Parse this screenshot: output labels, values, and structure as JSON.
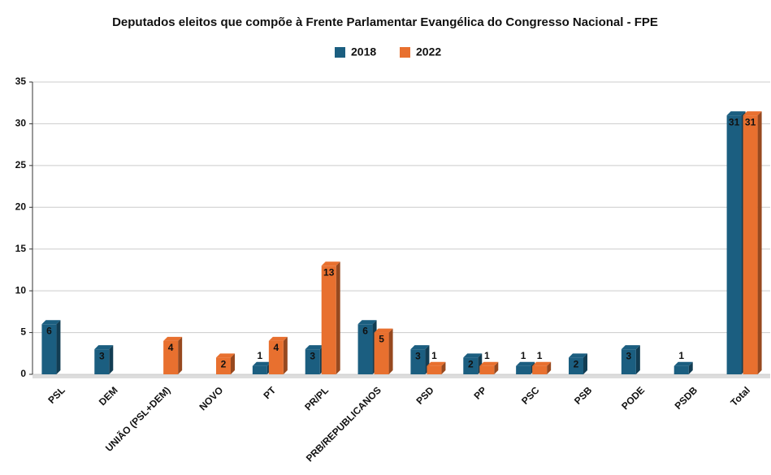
{
  "chart_data": {
    "type": "bar",
    "title": "Deputados eleitos que compõe à Frente Parlamentar Evangélica do Congresso Nacional - FPE",
    "categories": [
      "PSL",
      "DEM",
      "UNIÃO (PSL+DEM)",
      "NOVO",
      "PT",
      "PR/PL",
      "PRB/REPUBLICANOS",
      "PSD",
      "PP",
      "PSC",
      "PSB",
      "PODE",
      "PSDB",
      "Total"
    ],
    "series": [
      {
        "name": "2018",
        "color": "#1b5e80",
        "values": [
          6,
          3,
          null,
          null,
          1,
          3,
          6,
          3,
          2,
          1,
          2,
          3,
          1,
          31
        ]
      },
      {
        "name": "2022",
        "color": "#e8702f",
        "values": [
          null,
          null,
          4,
          2,
          4,
          13,
          5,
          1,
          1,
          1,
          null,
          null,
          null,
          31
        ]
      }
    ],
    "ylim": [
      0,
      35
    ],
    "yticks": [
      0,
      5,
      10,
      15,
      20,
      25,
      30,
      35
    ],
    "grid": true,
    "legend": "top"
  }
}
